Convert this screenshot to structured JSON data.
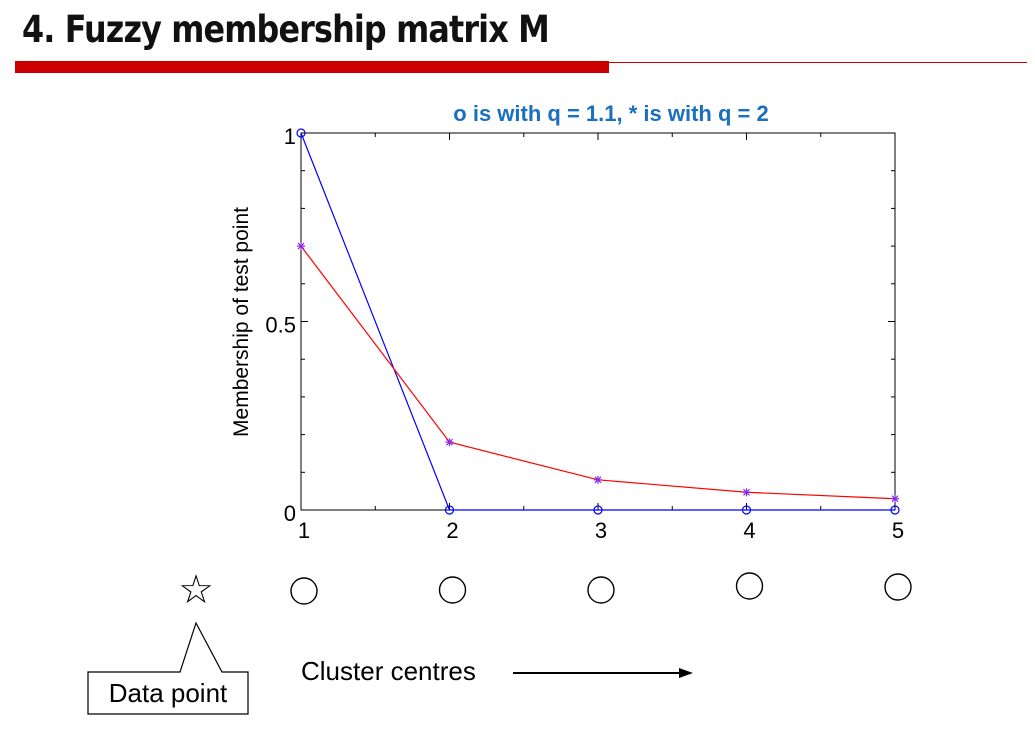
{
  "slide": {
    "title": "4. Fuzzy membership matrix M",
    "accent_color": "#cc0000"
  },
  "chart_data": {
    "type": "line",
    "title": "o is with q = 1.1, * is with q = 2",
    "title_color": "#1a6fc0",
    "xlabel": "",
    "ylabel": "Membership of test point",
    "x": [
      1,
      2,
      3,
      4,
      5
    ],
    "x_ticks": [
      "1",
      "2",
      "3",
      "4",
      "5"
    ],
    "y_ticks": [
      "0",
      "0.5",
      "1"
    ],
    "xlim": [
      1,
      5
    ],
    "ylim": [
      0,
      1
    ],
    "grid": false,
    "series": [
      {
        "marker": "o",
        "color": "#0000ff",
        "values": [
          1.0,
          0.0,
          0.0,
          0.0,
          0.0
        ]
      },
      {
        "marker": "*",
        "color": "#ff0000",
        "values": [
          0.7,
          0.18,
          0.08,
          0.047,
          0.03
        ]
      }
    ]
  },
  "diagram": {
    "data_point_symbol": "☆",
    "data_point_label": "Data point",
    "cluster_centres_label": "Cluster centres",
    "cluster_count": 5
  }
}
